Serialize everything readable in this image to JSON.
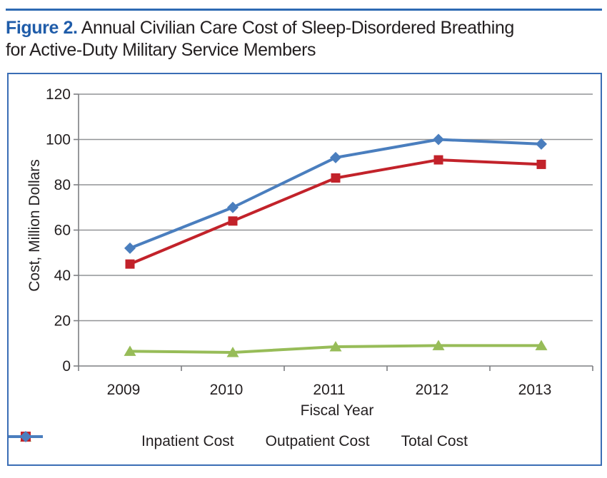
{
  "title": {
    "label": "Figure 2.",
    "line1": "Annual Civilian Care Cost of Sleep-Disordered Breathing",
    "line2": "for Active-Duty Military Service Members"
  },
  "colors": {
    "title_accent": "#1f5ca9",
    "title_text": "#231f20",
    "top_rule": "#2e6ab3",
    "frame_border": "#3a6db5",
    "gridline": "#919396",
    "axis": "#7d7f82",
    "tick_text": "#231f20"
  },
  "chart_data": {
    "type": "line",
    "categories": [
      "2009",
      "2010",
      "2011",
      "2012",
      "2013"
    ],
    "series": [
      {
        "name": "Inpatient Cost",
        "marker": "triangle",
        "color": "#97bc58",
        "values": [
          6.5,
          6,
          8.5,
          9,
          9
        ]
      },
      {
        "name": "Outpatient Cost",
        "marker": "square",
        "color": "#c2222a",
        "values": [
          45,
          64,
          83,
          91,
          89
        ]
      },
      {
        "name": "Total Cost",
        "marker": "diamond",
        "color": "#4a7ebe",
        "values": [
          52,
          70,
          92,
          100,
          98
        ]
      }
    ],
    "xlabel": "Fiscal Year",
    "ylabel": "Cost, Million Dollars",
    "ylim": [
      0,
      120
    ],
    "yticks": [
      0,
      20,
      40,
      60,
      80,
      100,
      120
    ],
    "grid": true,
    "legend_position": "bottom"
  }
}
